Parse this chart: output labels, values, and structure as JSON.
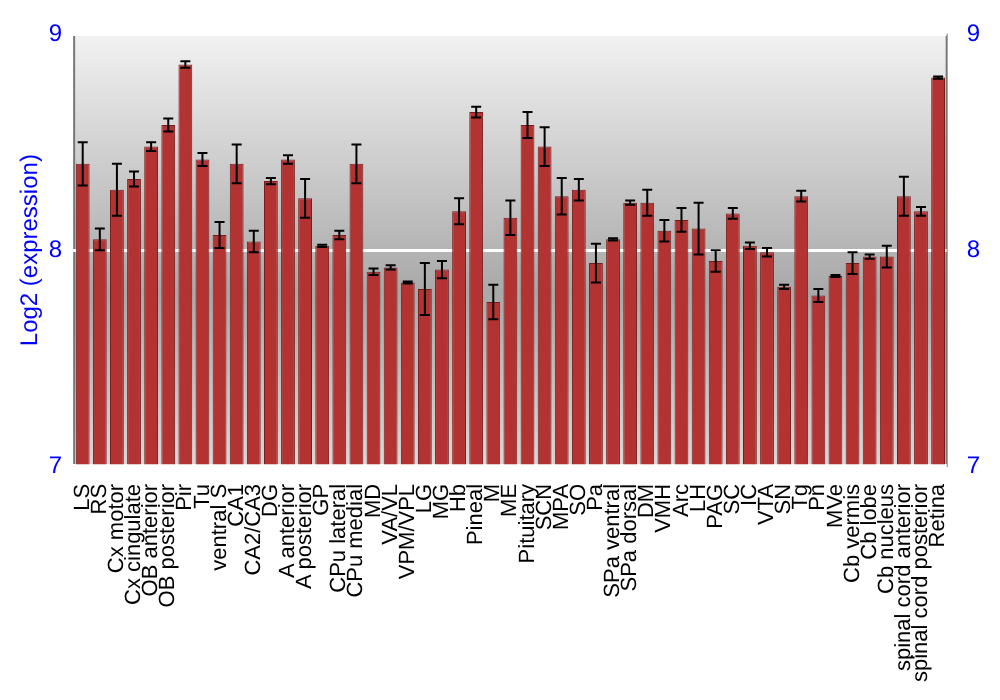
{
  "chart_data": {
    "type": "bar",
    "ylabel": "Log2 (expression)",
    "categories": [
      "LS",
      "RS",
      "Cx motor",
      "Cx cingulate",
      "OB anterior",
      "OB posterior",
      "Pir",
      "Tu",
      "ventral S",
      "CA1",
      "CA2/CA3",
      "DG",
      "A anterior",
      "A posterior",
      "GP",
      "CPu lateral",
      "CPu medial",
      "MD",
      "VA/VL",
      "VPM/VPL",
      "LG",
      "MG",
      "Hb",
      "Pineal",
      "M",
      "ME",
      "Pituitary",
      "SCN",
      "MPA",
      "SO",
      "Pa",
      "SPa ventral",
      "SPa dorsal",
      "DM",
      "VMH",
      "Arc",
      "LH",
      "PAG",
      "SC",
      "IC",
      "VTA",
      "SN",
      "Tg",
      "Pn",
      "MVe",
      "Cb vermis",
      "Cb lobe",
      "Cb nucleus",
      "spinal cord anterior",
      "spinal cord posterior",
      "Retina"
    ],
    "values": [
      8.4,
      8.05,
      8.28,
      8.33,
      8.48,
      8.58,
      8.86,
      8.42,
      8.07,
      8.4,
      8.04,
      8.32,
      8.42,
      8.24,
      8.02,
      8.07,
      8.4,
      7.9,
      7.92,
      7.85,
      7.82,
      7.91,
      8.18,
      8.64,
      7.76,
      8.15,
      8.58,
      8.48,
      8.25,
      8.28,
      7.94,
      8.05,
      8.22,
      8.22,
      8.09,
      8.14,
      8.1,
      7.95,
      8.17,
      8.02,
      7.99,
      7.83,
      8.25,
      7.79,
      7.88,
      7.94,
      7.97,
      7.97,
      8.25,
      8.18,
      8.8
    ],
    "errors": [
      0.1,
      0.05,
      0.12,
      0.035,
      0.02,
      0.03,
      0.015,
      0.03,
      0.06,
      0.09,
      0.05,
      0.015,
      0.02,
      0.09,
      0.005,
      0.02,
      0.09,
      0.015,
      0.01,
      0.005,
      0.12,
      0.04,
      0.06,
      0.025,
      0.08,
      0.08,
      0.06,
      0.09,
      0.085,
      0.05,
      0.09,
      0.005,
      0.01,
      0.06,
      0.05,
      0.055,
      0.12,
      0.05,
      0.025,
      0.015,
      0.02,
      0.01,
      0.025,
      0.03,
      0.005,
      0.05,
      0.01,
      0.05,
      0.09,
      0.02,
      0.005
    ],
    "color": "#b33333",
    "ylim": [
      7,
      9
    ],
    "yticks": [
      7,
      8,
      9
    ],
    "y2lim": [
      7,
      9
    ],
    "y2ticks": [
      7,
      8,
      9
    ],
    "grid": "y",
    "legend": false
  }
}
